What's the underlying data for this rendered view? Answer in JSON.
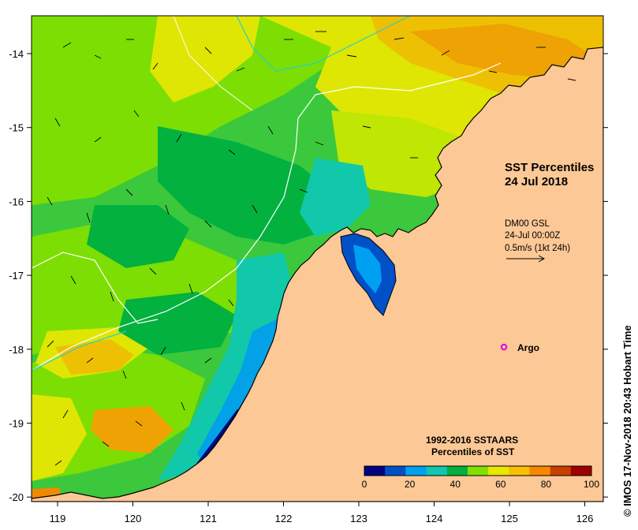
{
  "map": {
    "title_line1": "SST Percentiles",
    "title_line2": "24 Jul 2018",
    "product_name": "DM00 GSL",
    "product_time": "24-Jul 00:00Z",
    "vector_scale": "0.5m/s (1kt 24h)",
    "argo_label": "Argo",
    "copyright": "© IMOS 17-Nov-2018 20:43 Hobart Time",
    "legend": {
      "title_line1": "1992-2016 SSTAARS",
      "title_line2": "Percentiles of SST",
      "tick_labels": [
        "0",
        "20",
        "40",
        "60",
        "80",
        "100"
      ],
      "colors": [
        "#000080",
        "#0050c8",
        "#00a0f0",
        "#10c8b0",
        "#00b040",
        "#80e000",
        "#e8e800",
        "#f8c000",
        "#f88800",
        "#c84000",
        "#a00000"
      ]
    },
    "x_tick_labels": [
      "119",
      "120",
      "121",
      "122",
      "123",
      "124",
      "125",
      "126"
    ],
    "y_tick_labels": [
      "-14",
      "-15",
      "-16",
      "-17",
      "-18",
      "-19",
      "-20"
    ],
    "colors": {
      "land": "#fcc896",
      "ocean_base": "#3cc83c",
      "coastline": "#000000",
      "contour": "#ffffff",
      "argo_marker": "#e000e0"
    }
  }
}
